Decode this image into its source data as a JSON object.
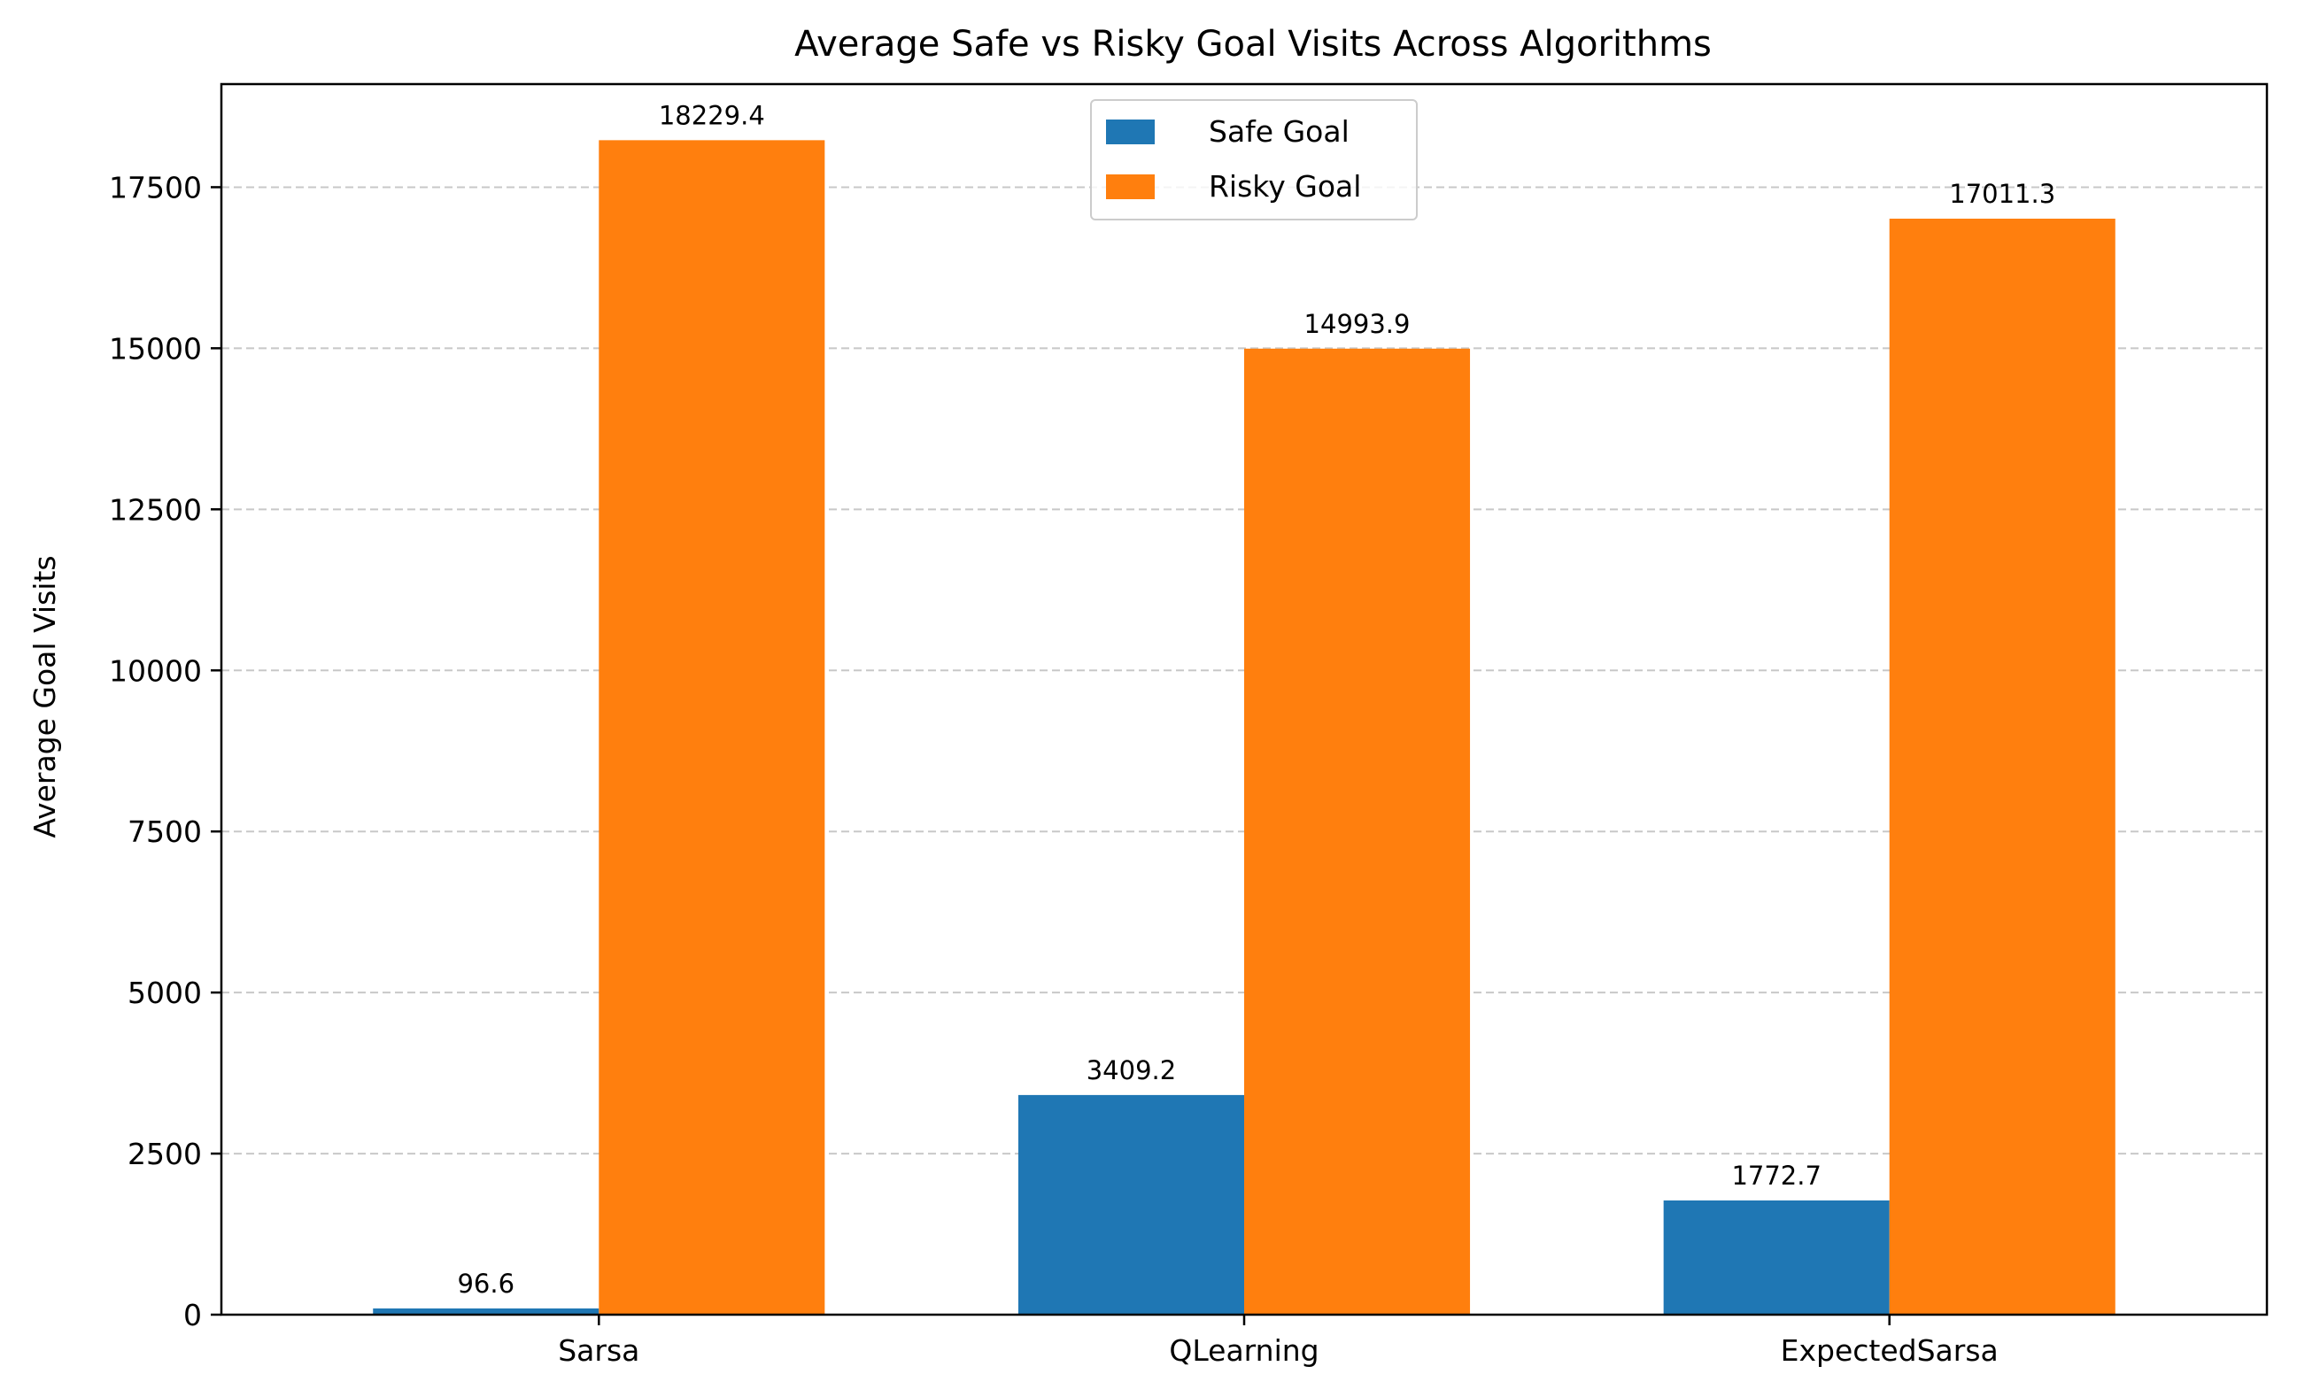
{
  "chart_data": {
    "type": "bar",
    "title": "Average Safe vs Risky Goal Visits Across Algorithms",
    "xlabel": "",
    "ylabel": "Average Goal Visits",
    "categories": [
      "Sarsa",
      "QLearning",
      "ExpectedSarsa"
    ],
    "series": [
      {
        "name": "Safe Goal",
        "color": "#1f77b4",
        "values": [
          96.6,
          3409.2,
          1772.7
        ],
        "labels": [
          "96.6",
          "3409.2",
          "1772.7"
        ]
      },
      {
        "name": "Risky Goal",
        "color": "#ff7f0e",
        "values": [
          18229.4,
          14993.9,
          17011.3
        ],
        "labels": [
          "18229.4",
          "14993.9",
          "17011.3"
        ]
      }
    ],
    "ylim": [
      0,
      19100
    ],
    "yticks": [
      0,
      2500,
      5000,
      7500,
      10000,
      12500,
      15000,
      17500
    ],
    "ytick_labels": [
      "0",
      "2500",
      "5000",
      "7500",
      "10000",
      "12500",
      "15000",
      "17500"
    ],
    "grid": {
      "axis": "y",
      "style": "dashed",
      "color": "#b0b0b0"
    },
    "legend": {
      "position": "top-center"
    }
  }
}
